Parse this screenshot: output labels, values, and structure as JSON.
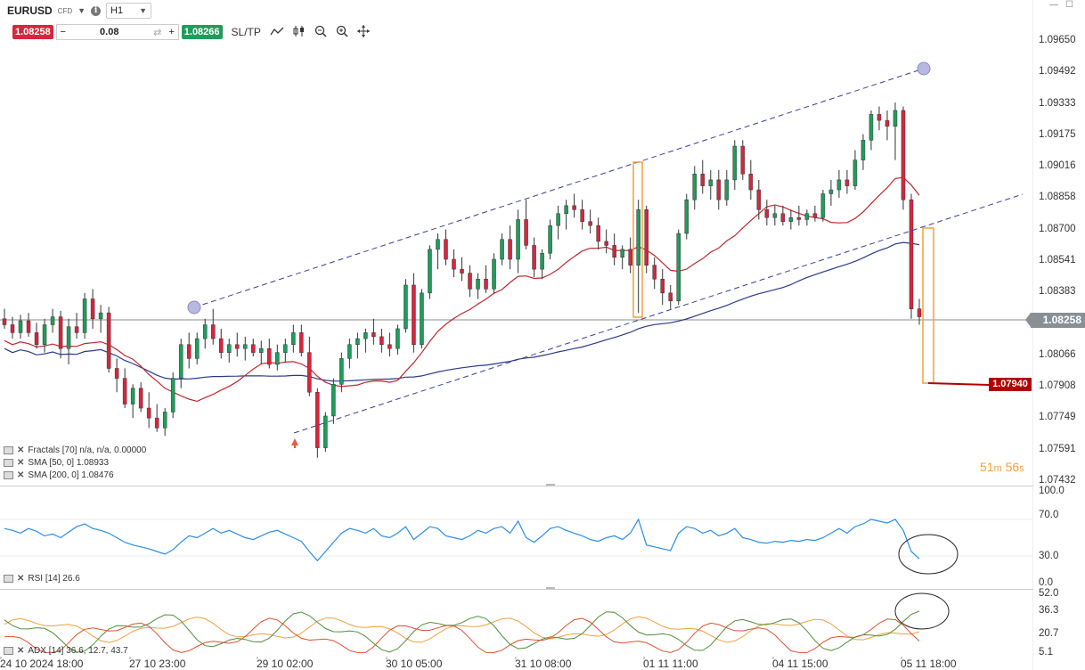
{
  "header": {
    "symbol": "EURUSD",
    "instrument_type": "CFD",
    "timeframe": "H1",
    "sell_price": "1.08258",
    "quantity": "0.08",
    "buy_price": "1.08266",
    "sl_tp_label": "SL/TP",
    "minus_label": "−",
    "plus_label": "+",
    "info_label": "i"
  },
  "price_axis": {
    "labels": [
      "1.09650",
      "1.09492",
      "1.09333",
      "1.09175",
      "1.09016",
      "1.08858",
      "1.08700",
      "1.08541",
      "1.08383",
      "1.08224",
      "1.08066",
      "1.07908",
      "1.07749",
      "1.07591",
      "1.07432"
    ],
    "current_price": "1.08258",
    "target_price": "1.07940"
  },
  "indicators": {
    "fractals": "Fractals [70] n/a, n/a, 0.00000",
    "sma50": "SMA [50, 0] 1.08933",
    "sma200": "SMA [200, 0] 1.08476",
    "rsi": "RSI [14] 26.6",
    "adx": "ADX [14] 36.6, 12.7, 43.7"
  },
  "timer": {
    "minutes": "51",
    "m": "m",
    "seconds": "56",
    "s": "s"
  },
  "rsi_axis": [
    "100.0",
    "70.0",
    "30.0",
    "0.0"
  ],
  "adx_axis": [
    "52.0",
    "36.3",
    "20.7",
    "5.1"
  ],
  "time_axis": [
    "24 10 2024 18:00",
    "27 10 23:00",
    "29 10 02:00",
    "30 10 05:00",
    "31 10 08:00",
    "01 11 11:00",
    "04 11 15:00",
    "05 11 18:00"
  ],
  "colors": {
    "bull": "#1e9e5a",
    "bear": "#d7263d",
    "sma50": "#c0282d",
    "sma200": "#2a3a8a",
    "channel": "#3a3f9a",
    "rsi": "#2a8ee8",
    "orange": "#f0a040"
  },
  "chart_data": {
    "type": "candlestick",
    "ylim": [
      1.07432,
      1.0965
    ],
    "channel": {
      "upper_anchor": 1.0831,
      "upper_end": 1.09492
    },
    "candles_ohlc": [
      [
        1.0825,
        1.083,
        1.082,
        1.0822
      ],
      [
        1.0822,
        1.0826,
        1.0815,
        1.0818
      ],
      [
        1.0818,
        1.0827,
        1.0815,
        1.0824
      ],
      [
        1.0824,
        1.0828,
        1.0816,
        1.0818
      ],
      [
        1.0818,
        1.0823,
        1.081,
        1.0812
      ],
      [
        1.0812,
        1.0825,
        1.0808,
        1.0822
      ],
      [
        1.0822,
        1.083,
        1.0818,
        1.0826
      ],
      [
        1.0826,
        1.0829,
        1.0805,
        1.081
      ],
      [
        1.081,
        1.0825,
        1.0802,
        1.0821
      ],
      [
        1.0821,
        1.0828,
        1.0815,
        1.0818
      ],
      [
        1.0818,
        1.0838,
        1.0815,
        1.0835
      ],
      [
        1.0835,
        1.084,
        1.082,
        1.0825
      ],
      [
        1.0825,
        1.0832,
        1.0818,
        1.0828
      ],
      [
        1.0828,
        1.0831,
        1.0798,
        1.08
      ],
      [
        1.08,
        1.0805,
        1.0788,
        1.0795
      ],
      [
        1.0795,
        1.08,
        1.078,
        1.0782
      ],
      [
        1.0782,
        1.0792,
        1.0775,
        1.079
      ],
      [
        1.079,
        1.0793,
        1.0778,
        1.078
      ],
      [
        1.078,
        1.0788,
        1.077,
        1.0775
      ],
      [
        1.0775,
        1.0782,
        1.0768,
        1.077
      ],
      [
        1.077,
        1.078,
        1.0766,
        1.0778
      ],
      [
        1.0778,
        1.0798,
        1.0775,
        1.0795
      ],
      [
        1.0795,
        1.0815,
        1.079,
        1.0812
      ],
      [
        1.0812,
        1.0818,
        1.08,
        1.0805
      ],
      [
        1.0805,
        1.0818,
        1.0802,
        1.0815
      ],
      [
        1.0815,
        1.0825,
        1.081,
        1.0822
      ],
      [
        1.0822,
        1.083,
        1.0812,
        1.0815
      ],
      [
        1.0815,
        1.082,
        1.0805,
        1.0808
      ],
      [
        1.0808,
        1.0815,
        1.0803,
        1.0812
      ],
      [
        1.0812,
        1.0818,
        1.0806,
        1.081
      ],
      [
        1.081,
        1.0816,
        1.0804,
        1.0812
      ],
      [
        1.0812,
        1.0815,
        1.0806,
        1.0808
      ],
      [
        1.0808,
        1.0814,
        1.0802,
        1.081
      ],
      [
        1.081,
        1.0815,
        1.08,
        1.0802
      ],
      [
        1.0802,
        1.0812,
        1.0799,
        1.0808
      ],
      [
        1.0808,
        1.0815,
        1.0803,
        1.0812
      ],
      [
        1.0812,
        1.0822,
        1.0808,
        1.0818
      ],
      [
        1.0818,
        1.0822,
        1.0806,
        1.0808
      ],
      [
        1.0808,
        1.0816,
        1.0786,
        1.0788
      ],
      [
        1.0788,
        1.079,
        1.0755,
        1.076
      ],
      [
        1.076,
        1.0778,
        1.0758,
        1.0776
      ],
      [
        1.0776,
        1.0795,
        1.0772,
        1.0792
      ],
      [
        1.0792,
        1.0808,
        1.0788,
        1.0805
      ],
      [
        1.0805,
        1.0815,
        1.08,
        1.0812
      ],
      [
        1.0812,
        1.0818,
        1.0805,
        1.0815
      ],
      [
        1.0815,
        1.082,
        1.0808,
        1.0818
      ],
      [
        1.0818,
        1.0825,
        1.0812,
        1.0816
      ],
      [
        1.0816,
        1.082,
        1.0808,
        1.0812
      ],
      [
        1.0812,
        1.0818,
        1.0806,
        1.081
      ],
      [
        1.081,
        1.0822,
        1.0807,
        1.082
      ],
      [
        1.082,
        1.0845,
        1.0818,
        1.0842
      ],
      [
        1.0842,
        1.0848,
        1.0808,
        1.0812
      ],
      [
        1.0812,
        1.084,
        1.081,
        1.0838
      ],
      [
        1.0838,
        1.0862,
        1.0835,
        1.086
      ],
      [
        1.086,
        1.0868,
        1.085,
        1.0865
      ],
      [
        1.0865,
        1.087,
        1.0852,
        1.0855
      ],
      [
        1.0855,
        1.086,
        1.0846,
        1.085
      ],
      [
        1.085,
        1.0856,
        1.0844,
        1.0848
      ],
      [
        1.0848,
        1.0852,
        1.0836,
        1.084
      ],
      [
        1.084,
        1.0848,
        1.0835,
        1.0845
      ],
      [
        1.0845,
        1.0852,
        1.0838,
        1.084
      ],
      [
        1.084,
        1.0858,
        1.0838,
        1.0855
      ],
      [
        1.0855,
        1.0868,
        1.0852,
        1.0865
      ],
      [
        1.0865,
        1.0872,
        1.085,
        1.0855
      ],
      [
        1.0855,
        1.088,
        1.0848,
        1.0875
      ],
      [
        1.0875,
        1.0885,
        1.086,
        1.0862
      ],
      [
        1.0862,
        1.0866,
        1.0846,
        1.085
      ],
      [
        1.085,
        1.086,
        1.0845,
        1.0858
      ],
      [
        1.0858,
        1.0875,
        1.0855,
        1.0872
      ],
      [
        1.0872,
        1.0882,
        1.0865,
        1.0878
      ],
      [
        1.0878,
        1.0885,
        1.087,
        1.0882
      ],
      [
        1.0882,
        1.0888,
        1.0876,
        1.088
      ],
      [
        1.088,
        1.0885,
        1.087,
        1.0874
      ],
      [
        1.0874,
        1.088,
        1.0868,
        1.0872
      ],
      [
        1.0872,
        1.0876,
        1.086,
        1.0864
      ],
      [
        1.0864,
        1.087,
        1.0858,
        1.0862
      ],
      [
        1.0862,
        1.0868,
        1.0852,
        1.0856
      ],
      [
        1.0856,
        1.0862,
        1.085,
        1.086
      ],
      [
        1.086,
        1.0866,
        1.0848,
        1.0852
      ],
      [
        1.0852,
        1.0885,
        1.0828,
        1.088
      ],
      [
        1.088,
        1.0882,
        1.0848,
        1.0852
      ],
      [
        1.0852,
        1.0856,
        1.084,
        1.0845
      ],
      [
        1.0845,
        1.085,
        1.0832,
        1.0838
      ],
      [
        1.0838,
        1.0842,
        1.083,
        1.0834
      ],
      [
        1.0834,
        1.087,
        1.0832,
        1.0868
      ],
      [
        1.0868,
        1.0888,
        1.0865,
        1.0885
      ],
      [
        1.0885,
        1.0902,
        1.088,
        1.0898
      ],
      [
        1.0898,
        1.0905,
        1.0888,
        1.0892
      ],
      [
        1.0892,
        1.09,
        1.0885,
        1.0895
      ],
      [
        1.0895,
        1.09,
        1.088,
        1.0885
      ],
      [
        1.0885,
        1.09,
        1.0882,
        1.0895
      ],
      [
        1.0895,
        1.0915,
        1.089,
        1.0912
      ],
      [
        1.0912,
        1.0915,
        1.0895,
        1.0898
      ],
      [
        1.0898,
        1.0905,
        1.0885,
        1.089
      ],
      [
        1.089,
        1.0895,
        1.0875,
        1.088
      ],
      [
        1.088,
        1.0885,
        1.0872,
        1.0876
      ],
      [
        1.0876,
        1.0882,
        1.0872,
        1.0878
      ],
      [
        1.0878,
        1.0882,
        1.0872,
        1.0874
      ],
      [
        1.0874,
        1.088,
        1.087,
        1.0876
      ],
      [
        1.0876,
        1.0882,
        1.0872,
        1.0875
      ],
      [
        1.0875,
        1.088,
        1.0872,
        1.0878
      ],
      [
        1.0878,
        1.0882,
        1.0874,
        1.0876
      ],
      [
        1.0876,
        1.089,
        1.0874,
        1.0888
      ],
      [
        1.0888,
        1.0895,
        1.0882,
        1.089
      ],
      [
        1.089,
        1.09,
        1.0886,
        1.0895
      ],
      [
        1.0895,
        1.09,
        1.0888,
        1.0892
      ],
      [
        1.0892,
        1.091,
        1.089,
        1.0905
      ],
      [
        1.0905,
        1.0918,
        1.09,
        1.0915
      ],
      [
        1.0915,
        1.093,
        1.091,
        1.0928
      ],
      [
        1.0928,
        1.0932,
        1.092,
        1.0925
      ],
      [
        1.0925,
        1.093,
        1.0915,
        1.0922
      ],
      [
        1.0922,
        1.0934,
        1.0905,
        1.093
      ],
      [
        1.093,
        1.0932,
        1.088,
        1.0885
      ],
      [
        1.0885,
        1.0888,
        1.0825,
        1.083
      ],
      [
        1.083,
        1.0835,
        1.0822,
        1.0826
      ]
    ]
  }
}
